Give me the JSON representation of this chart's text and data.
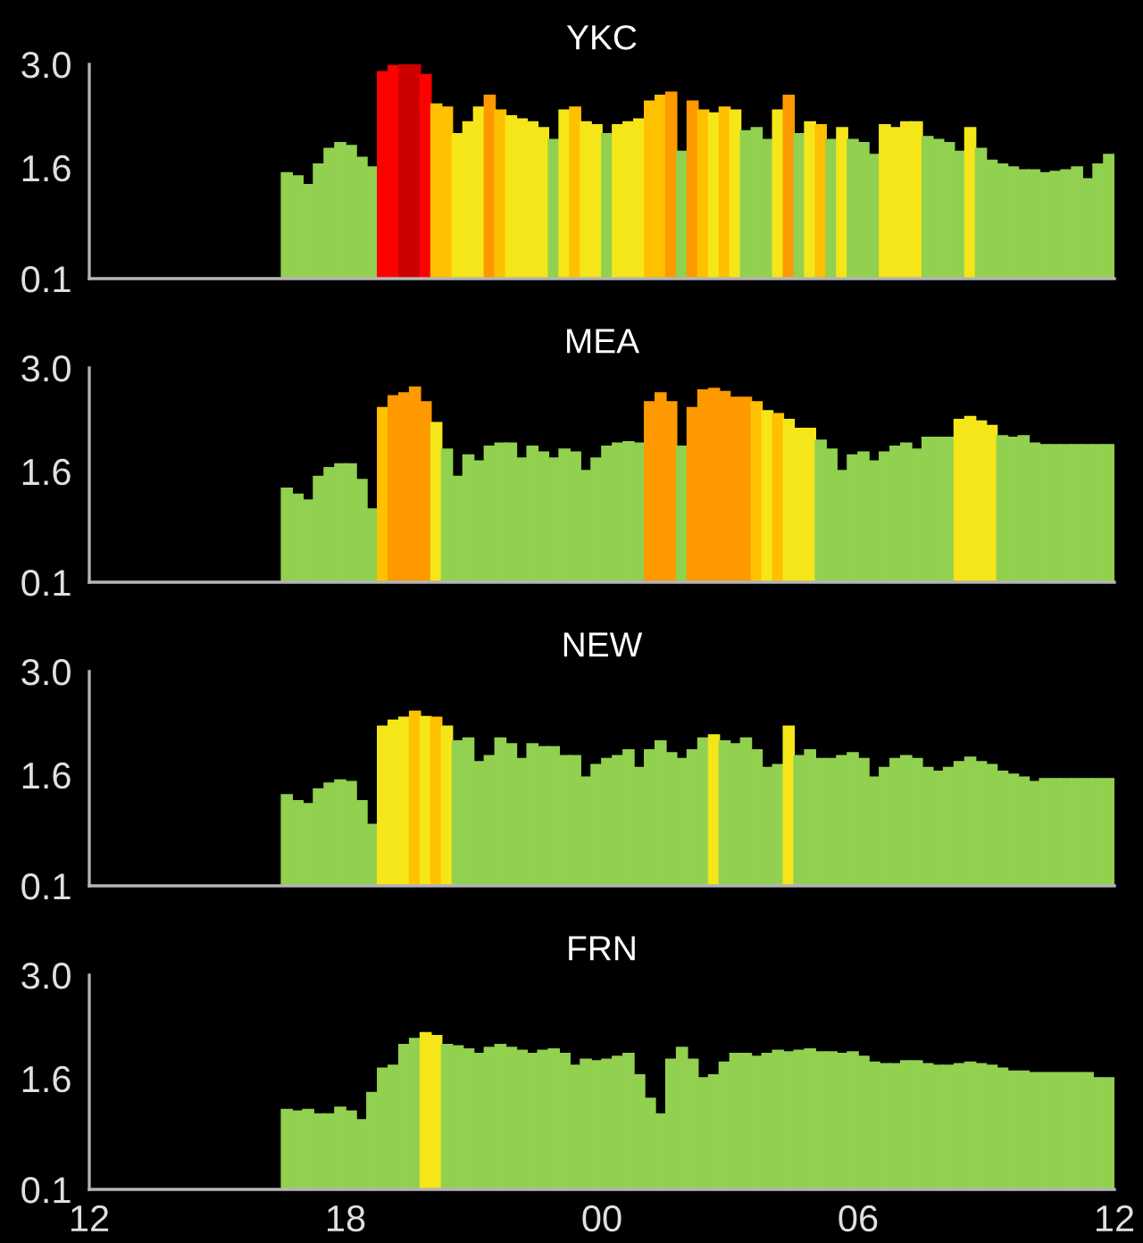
{
  "chart_data": [
    {
      "type": "bar",
      "title": "YKC",
      "tick_labels": "y",
      "xlim": [
        12,
        36
      ],
      "ylim": [
        0.1,
        3.0
      ],
      "yticks": [
        {
          "value": 0.1,
          "label": "0.1"
        },
        {
          "value": 1.6,
          "label": "1.6"
        },
        {
          "value": 3,
          "label": "3.0"
        }
      ],
      "x": [
        16.625,
        16.875,
        17.125,
        17.375,
        17.625,
        17.875,
        18.125,
        18.375,
        18.625,
        18.875,
        19.125,
        19.375,
        19.625,
        19.875,
        20.125,
        20.375,
        20.625,
        20.875,
        21.125,
        21.375,
        21.625,
        21.875,
        22.125,
        22.375,
        22.625,
        22.875,
        23.125,
        23.375,
        23.625,
        23.875,
        24.125,
        24.375,
        24.625,
        24.875,
        25.125,
        25.375,
        25.625,
        25.875,
        26.125,
        26.375,
        26.625,
        26.875,
        27.125,
        27.375,
        27.625,
        27.875,
        28.125,
        28.375,
        28.625,
        28.875,
        29.125,
        29.375,
        29.625,
        29.875,
        30.125,
        30.375,
        30.625,
        30.875,
        31.125,
        31.375,
        31.625,
        31.875,
        32.125,
        32.375,
        32.625,
        32.875,
        33.125,
        33.375,
        33.625,
        33.875,
        34.125,
        34.375,
        34.625,
        34.875,
        35.125,
        35.375,
        35.625,
        35.875
      ],
      "values": [
        1.53,
        1.49,
        1.37,
        1.65,
        1.86,
        1.94,
        1.9,
        1.74,
        1.61,
        2.9,
        2.98,
        2.99,
        2.99,
        2.86,
        2.46,
        2.42,
        2.06,
        2.22,
        2.42,
        2.58,
        2.38,
        2.3,
        2.26,
        2.22,
        2.14,
        1.98,
        2.38,
        2.42,
        2.22,
        2.18,
        2.06,
        2.18,
        2.22,
        2.26,
        2.5,
        2.58,
        2.62,
        1.82,
        2.5,
        2.38,
        2.34,
        2.42,
        2.38,
        2.1,
        2.14,
        1.98,
        2.38,
        2.58,
        2.06,
        2.22,
        2.18,
        1.98,
        2.14,
        1.98,
        1.94,
        1.78,
        2.18,
        2.14,
        2.22,
        2.22,
        2.02,
        1.98,
        1.94,
        1.82,
        2.14,
        1.86,
        1.7,
        1.65,
        1.61,
        1.57,
        1.57,
        1.53,
        1.55,
        1.57,
        1.61,
        1.45,
        1.65,
        1.78
      ],
      "colors": [
        "#92d050",
        "#92d050",
        "#92d050",
        "#92d050",
        "#92d050",
        "#92d050",
        "#92d050",
        "#92d050",
        "#92d050",
        "#ff0000",
        "#ff0000",
        "#cc0000",
        "#cc0000",
        "#ff0000",
        "#ffc000",
        "#ffc000",
        "#f5e61a",
        "#f5e61a",
        "#f5e61a",
        "#ff9900",
        "#ffc000",
        "#f5e61a",
        "#f5e61a",
        "#f5e61a",
        "#f5e61a",
        "#92d050",
        "#f5e61a",
        "#ffc000",
        "#f5e61a",
        "#f5e61a",
        "#92d050",
        "#f5e61a",
        "#f5e61a",
        "#f5e61a",
        "#ffc000",
        "#ffc000",
        "#ff9900",
        "#92d050",
        "#ff9900",
        "#ffc000",
        "#f5e61a",
        "#ffc000",
        "#f5e61a",
        "#92d050",
        "#92d050",
        "#92d050",
        "#f5e61a",
        "#ff9900",
        "#92d050",
        "#f5e61a",
        "#ffc000",
        "#92d050",
        "#f5e61a",
        "#92d050",
        "#92d050",
        "#92d050",
        "#f5e61a",
        "#f5e61a",
        "#f5e61a",
        "#f5e61a",
        "#92d050",
        "#92d050",
        "#92d050",
        "#92d050",
        "#f5e61a",
        "#92d050",
        "#92d050",
        "#92d050",
        "#92d050",
        "#92d050",
        "#92d050",
        "#92d050",
        "#92d050",
        "#92d050",
        "#92d050",
        "#92d050",
        "#92d050",
        "#92d050"
      ]
    },
    {
      "type": "bar",
      "title": "MEA",
      "tick_labels": "y",
      "xlim": [
        12,
        36
      ],
      "ylim": [
        0.1,
        3.0
      ],
      "yticks": [
        {
          "value": 0.1,
          "label": "0.1"
        },
        {
          "value": 1.6,
          "label": "1.6"
        },
        {
          "value": 3,
          "label": "3.0"
        }
      ],
      "x": [
        16.625,
        16.875,
        17.125,
        17.375,
        17.625,
        17.875,
        18.125,
        18.375,
        18.625,
        18.875,
        19.125,
        19.375,
        19.625,
        19.875,
        20.125,
        20.375,
        20.625,
        20.875,
        21.125,
        21.375,
        21.625,
        21.875,
        22.125,
        22.375,
        22.625,
        22.875,
        23.125,
        23.375,
        23.625,
        23.875,
        24.125,
        24.375,
        24.625,
        24.875,
        25.125,
        25.375,
        25.625,
        25.875,
        26.125,
        26.375,
        26.625,
        26.875,
        27.125,
        27.375,
        27.625,
        27.875,
        28.125,
        28.375,
        28.625,
        28.875,
        29.125,
        29.375,
        29.625,
        29.875,
        30.125,
        30.375,
        30.625,
        30.875,
        31.125,
        31.375,
        31.625,
        31.875,
        32.125,
        32.375,
        32.625,
        32.875,
        33.125,
        33.375,
        33.625,
        33.875,
        34.125,
        34.375,
        34.625,
        34.875,
        35.125,
        35.375,
        35.625,
        35.875
      ],
      "values": [
        1.37,
        1.29,
        1.21,
        1.53,
        1.65,
        1.7,
        1.7,
        1.49,
        1.09,
        2.46,
        2.62,
        2.66,
        2.74,
        2.54,
        2.26,
        1.9,
        1.53,
        1.82,
        1.74,
        1.94,
        1.98,
        1.98,
        1.78,
        1.94,
        1.86,
        1.78,
        1.9,
        1.86,
        1.61,
        1.78,
        1.94,
        1.98,
        2.0,
        1.98,
        2.54,
        2.66,
        2.54,
        1.94,
        2.46,
        2.7,
        2.72,
        2.68,
        2.6,
        2.6,
        2.54,
        2.42,
        2.38,
        2.3,
        2.18,
        2.18,
        2.02,
        1.9,
        1.61,
        1.82,
        1.86,
        1.74,
        1.86,
        1.94,
        1.98,
        1.9,
        2.06,
        2.06,
        2.06,
        2.3,
        2.34,
        2.28,
        2.22,
        2.08,
        2.06,
        2.08,
        1.98,
        1.96,
        1.96,
        1.96,
        1.96,
        1.96,
        1.96,
        1.96
      ],
      "colors": [
        "#92d050",
        "#92d050",
        "#92d050",
        "#92d050",
        "#92d050",
        "#92d050",
        "#92d050",
        "#92d050",
        "#92d050",
        "#ffc000",
        "#ff9900",
        "#ff9900",
        "#ff9900",
        "#ff9900",
        "#f5e61a",
        "#92d050",
        "#92d050",
        "#92d050",
        "#92d050",
        "#92d050",
        "#92d050",
        "#92d050",
        "#92d050",
        "#92d050",
        "#92d050",
        "#92d050",
        "#92d050",
        "#92d050",
        "#92d050",
        "#92d050",
        "#92d050",
        "#92d050",
        "#92d050",
        "#92d050",
        "#ff9900",
        "#ff9900",
        "#ff9900",
        "#92d050",
        "#ff9900",
        "#ff9900",
        "#ff9900",
        "#ff9900",
        "#ff9900",
        "#ff9900",
        "#ffc000",
        "#f5e61a",
        "#ffc000",
        "#f5e61a",
        "#f5e61a",
        "#f5e61a",
        "#92d050",
        "#92d050",
        "#92d050",
        "#92d050",
        "#92d050",
        "#92d050",
        "#92d050",
        "#92d050",
        "#92d050",
        "#92d050",
        "#92d050",
        "#92d050",
        "#92d050",
        "#f5e61a",
        "#f5e61a",
        "#f5e61a",
        "#f5e61a",
        "#92d050",
        "#92d050",
        "#92d050",
        "#92d050",
        "#92d050",
        "#92d050",
        "#92d050",
        "#92d050",
        "#92d050",
        "#92d050",
        "#92d050"
      ]
    },
    {
      "type": "bar",
      "title": "NEW",
      "tick_labels": "y",
      "xlim": [
        12,
        36
      ],
      "ylim": [
        0.1,
        3.0
      ],
      "yticks": [
        {
          "value": 0.1,
          "label": "0.1"
        },
        {
          "value": 1.6,
          "label": "1.6"
        },
        {
          "value": 3,
          "label": "3.0"
        }
      ],
      "x": [
        16.625,
        16.875,
        17.125,
        17.375,
        17.625,
        17.875,
        18.125,
        18.375,
        18.625,
        18.875,
        19.125,
        19.375,
        19.625,
        19.875,
        20.125,
        20.375,
        20.625,
        20.875,
        21.125,
        21.375,
        21.625,
        21.875,
        22.125,
        22.375,
        22.625,
        22.875,
        23.125,
        23.375,
        23.625,
        23.875,
        24.125,
        24.375,
        24.625,
        24.875,
        25.125,
        25.375,
        25.625,
        25.875,
        26.125,
        26.375,
        26.625,
        26.875,
        27.125,
        27.375,
        27.625,
        27.875,
        28.125,
        28.375,
        28.625,
        28.875,
        29.125,
        29.375,
        29.625,
        29.875,
        30.125,
        30.375,
        30.625,
        30.875,
        31.125,
        31.375,
        31.625,
        31.875,
        32.125,
        32.375,
        32.625,
        32.875,
        33.125,
        33.375,
        33.625,
        33.875,
        34.125,
        34.375,
        34.625,
        34.875,
        35.125,
        35.375,
        35.625,
        35.875
      ],
      "values": [
        1.33,
        1.25,
        1.21,
        1.41,
        1.49,
        1.53,
        1.51,
        1.25,
        0.93,
        2.26,
        2.34,
        2.38,
        2.46,
        2.39,
        2.38,
        2.26,
        2.06,
        2.1,
        1.78,
        1.86,
        2.1,
        2.02,
        1.82,
        2.02,
        1.98,
        1.98,
        1.86,
        1.86,
        1.57,
        1.74,
        1.82,
        1.86,
        1.94,
        1.7,
        1.94,
        2.06,
        1.9,
        1.82,
        1.94,
        2.1,
        2.14,
        2.06,
        2.02,
        2.1,
        1.94,
        1.7,
        1.74,
        2.26,
        1.86,
        1.94,
        1.82,
        1.82,
        1.86,
        1.9,
        1.82,
        1.57,
        1.7,
        1.82,
        1.86,
        1.82,
        1.7,
        1.65,
        1.7,
        1.78,
        1.84,
        1.78,
        1.74,
        1.65,
        1.61,
        1.57,
        1.51,
        1.55,
        1.55,
        1.55,
        1.55,
        1.55,
        1.55,
        1.55
      ],
      "colors": [
        "#92d050",
        "#92d050",
        "#92d050",
        "#92d050",
        "#92d050",
        "#92d050",
        "#92d050",
        "#92d050",
        "#92d050",
        "#f5e61a",
        "#f5e61a",
        "#f5e61a",
        "#ffc000",
        "#f5e61a",
        "#ffc000",
        "#f5e61a",
        "#92d050",
        "#92d050",
        "#92d050",
        "#92d050",
        "#92d050",
        "#92d050",
        "#92d050",
        "#92d050",
        "#92d050",
        "#92d050",
        "#92d050",
        "#92d050",
        "#92d050",
        "#92d050",
        "#92d050",
        "#92d050",
        "#92d050",
        "#92d050",
        "#92d050",
        "#92d050",
        "#92d050",
        "#92d050",
        "#92d050",
        "#92d050",
        "#f5e61a",
        "#92d050",
        "#92d050",
        "#92d050",
        "#92d050",
        "#92d050",
        "#92d050",
        "#f5e61a",
        "#92d050",
        "#92d050",
        "#92d050",
        "#92d050",
        "#92d050",
        "#92d050",
        "#92d050",
        "#92d050",
        "#92d050",
        "#92d050",
        "#92d050",
        "#92d050",
        "#92d050",
        "#92d050",
        "#92d050",
        "#92d050",
        "#92d050",
        "#92d050",
        "#92d050",
        "#92d050",
        "#92d050",
        "#92d050",
        "#92d050",
        "#92d050",
        "#92d050",
        "#92d050",
        "#92d050",
        "#92d050",
        "#92d050",
        "#92d050"
      ]
    },
    {
      "type": "bar",
      "title": "FRN",
      "xlim": [
        12,
        36
      ],
      "xticks": [
        {
          "value": 12,
          "label": "12"
        },
        {
          "value": 18,
          "label": "18"
        },
        {
          "value": 24,
          "label": "00"
        },
        {
          "value": 30,
          "label": "06"
        },
        {
          "value": 36,
          "label": "12"
        }
      ],
      "ylim": [
        0.1,
        3.0
      ],
      "yticks": [
        {
          "value": 0.1,
          "label": "0.1"
        },
        {
          "value": 1.6,
          "label": "1.6"
        },
        {
          "value": 3,
          "label": "3.0"
        }
      ],
      "x": [
        16.625,
        16.875,
        17.125,
        17.375,
        17.625,
        17.875,
        18.125,
        18.375,
        18.625,
        18.875,
        19.125,
        19.375,
        19.625,
        19.875,
        20.125,
        20.375,
        20.625,
        20.875,
        21.125,
        21.375,
        21.625,
        21.875,
        22.125,
        22.375,
        22.625,
        22.875,
        23.125,
        23.375,
        23.625,
        23.875,
        24.125,
        24.375,
        24.625,
        24.875,
        25.125,
        25.375,
        25.625,
        25.875,
        26.125,
        26.375,
        26.625,
        26.875,
        27.125,
        27.375,
        27.625,
        27.875,
        28.125,
        28.375,
        28.625,
        28.875,
        29.125,
        29.375,
        29.625,
        29.875,
        30.125,
        30.375,
        30.625,
        30.875,
        31.125,
        31.375,
        31.625,
        31.875,
        32.125,
        32.375,
        32.625,
        32.875,
        33.125,
        33.375,
        33.625,
        33.875,
        34.125,
        34.375,
        34.625,
        34.875,
        35.125,
        35.375,
        35.625,
        35.875
      ],
      "values": [
        1.18,
        1.16,
        1.18,
        1.12,
        1.12,
        1.21,
        1.16,
        1.04,
        1.41,
        1.74,
        1.78,
        2.06,
        2.14,
        2.22,
        2.18,
        2.06,
        2.04,
        2.0,
        1.94,
        2.02,
        2.06,
        2.02,
        1.98,
        1.94,
        1.98,
        2.0,
        1.94,
        1.78,
        1.86,
        1.84,
        1.86,
        1.9,
        1.94,
        1.65,
        1.33,
        1.12,
        1.86,
        2.02,
        1.86,
        1.61,
        1.65,
        1.82,
        1.94,
        1.94,
        1.9,
        1.94,
        1.98,
        1.96,
        1.98,
        2.0,
        1.96,
        1.96,
        1.94,
        1.96,
        1.9,
        1.82,
        1.8,
        1.8,
        1.84,
        1.84,
        1.8,
        1.78,
        1.78,
        1.8,
        1.82,
        1.8,
        1.78,
        1.74,
        1.7,
        1.7,
        1.68,
        1.68,
        1.68,
        1.68,
        1.68,
        1.68,
        1.61,
        1.61
      ],
      "colors": [
        "#92d050",
        "#92d050",
        "#92d050",
        "#92d050",
        "#92d050",
        "#92d050",
        "#92d050",
        "#92d050",
        "#92d050",
        "#92d050",
        "#92d050",
        "#92d050",
        "#92d050",
        "#f5e61a",
        "#f5e61a",
        "#92d050",
        "#92d050",
        "#92d050",
        "#92d050",
        "#92d050",
        "#92d050",
        "#92d050",
        "#92d050",
        "#92d050",
        "#92d050",
        "#92d050",
        "#92d050",
        "#92d050",
        "#92d050",
        "#92d050",
        "#92d050",
        "#92d050",
        "#92d050",
        "#92d050",
        "#92d050",
        "#92d050",
        "#92d050",
        "#92d050",
        "#92d050",
        "#92d050",
        "#92d050",
        "#92d050",
        "#92d050",
        "#92d050",
        "#92d050",
        "#92d050",
        "#92d050",
        "#92d050",
        "#92d050",
        "#92d050",
        "#92d050",
        "#92d050",
        "#92d050",
        "#92d050",
        "#92d050",
        "#92d050",
        "#92d050",
        "#92d050",
        "#92d050",
        "#92d050",
        "#92d050",
        "#92d050",
        "#92d050",
        "#92d050",
        "#92d050",
        "#92d050",
        "#92d050",
        "#92d050",
        "#92d050",
        "#92d050",
        "#92d050",
        "#92d050",
        "#92d050",
        "#92d050",
        "#92d050",
        "#92d050",
        "#92d050",
        "#92d050"
      ]
    }
  ]
}
